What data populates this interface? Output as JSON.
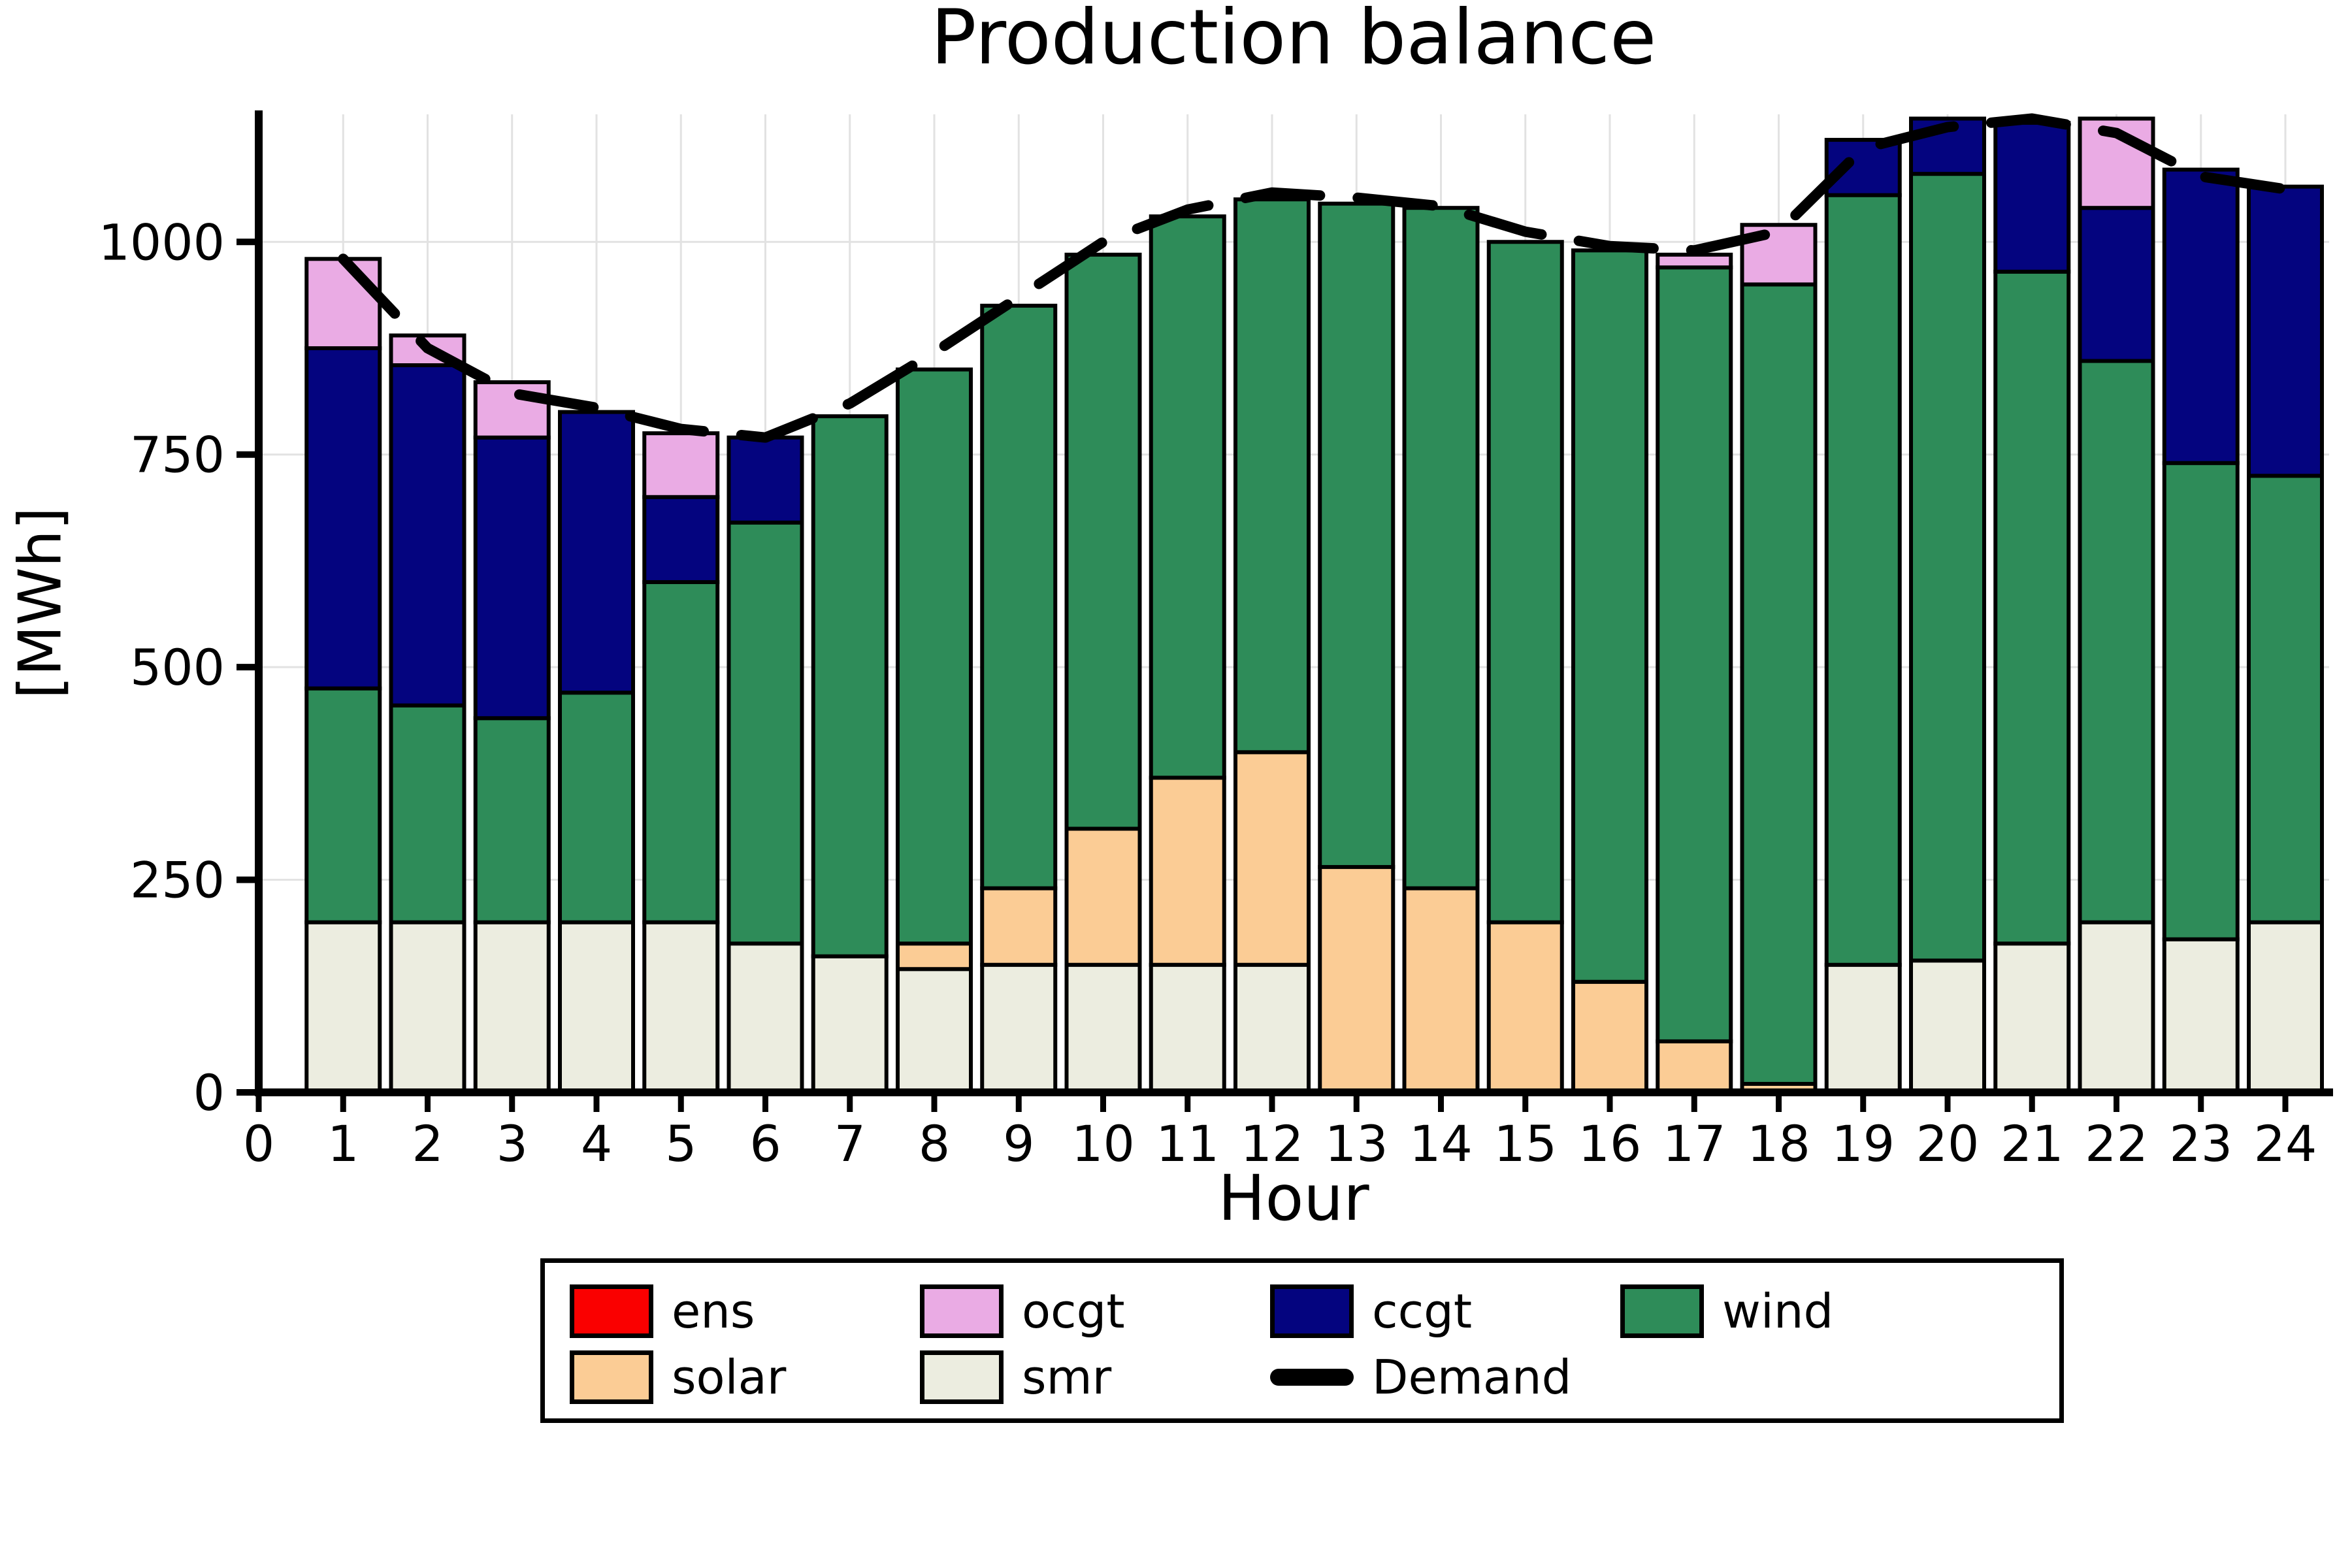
{
  "title": "Production balance",
  "axes": {
    "xlabel": "Hour",
    "ylabel": "[MWh]",
    "yticks": [
      0,
      250,
      500,
      750,
      1000
    ],
    "xticks": [
      0,
      1,
      2,
      3,
      4,
      5,
      6,
      7,
      8,
      9,
      10,
      11,
      12,
      13,
      14,
      15,
      16,
      17,
      18,
      19,
      20,
      21,
      22,
      23,
      24
    ],
    "ylim": [
      0,
      1150
    ],
    "grid": true
  },
  "colors": {
    "ens": "#fa0000",
    "ocgt": "#eaabe4",
    "ccgt": "#04047f",
    "wind": "#2e8c59",
    "solar": "#fbcc95",
    "smr": "#ecede0",
    "demand": "#000000",
    "grid": "#e2e2e2",
    "axis": "#000000",
    "bar_stroke": "#000000"
  },
  "legend": {
    "rows": [
      [
        "ens",
        "ocgt",
        "ccgt",
        "wind"
      ],
      [
        "solar",
        "smr",
        "demand"
      ]
    ],
    "labels": {
      "ens": "ens",
      "ocgt": "ocgt",
      "ccgt": "ccgt",
      "wind": "wind",
      "solar": "solar",
      "smr": "smr",
      "demand": "Demand"
    },
    "position": "bottom-center"
  },
  "chart_data": {
    "type": "bar",
    "stacked": true,
    "title": "Production balance",
    "xlabel": "Hour",
    "ylabel": "[MWh]",
    "ylim": [
      0,
      1150
    ],
    "x": [
      1,
      2,
      3,
      4,
      5,
      6,
      7,
      8,
      9,
      10,
      11,
      12,
      13,
      14,
      15,
      16,
      17,
      18,
      19,
      20,
      21,
      22,
      23,
      24
    ],
    "stack_order": [
      "smr",
      "solar",
      "wind",
      "ccgt",
      "ocgt",
      "ens"
    ],
    "series": [
      {
        "name": "smr",
        "values": [
          200,
          200,
          200,
          200,
          200,
          175,
          160,
          145,
          150,
          150,
          150,
          150,
          0,
          0,
          0,
          0,
          0,
          0,
          150,
          155,
          175,
          200,
          180,
          200
        ]
      },
      {
        "name": "solar",
        "values": [
          0,
          0,
          0,
          0,
          0,
          0,
          0,
          30,
          90,
          160,
          220,
          250,
          265,
          240,
          200,
          130,
          60,
          10,
          0,
          0,
          0,
          0,
          0,
          0
        ]
      },
      {
        "name": "wind",
        "values": [
          275,
          255,
          240,
          270,
          400,
          495,
          635,
          675,
          685,
          675,
          660,
          650,
          780,
          800,
          800,
          860,
          910,
          940,
          905,
          925,
          790,
          660,
          560,
          525
        ]
      },
      {
        "name": "ccgt",
        "values": [
          400,
          400,
          330,
          330,
          100,
          100,
          0,
          0,
          0,
          0,
          0,
          0,
          0,
          0,
          0,
          0,
          0,
          0,
          65,
          65,
          175,
          180,
          345,
          340
        ]
      },
      {
        "name": "ocgt",
        "values": [
          105,
          35,
          65,
          0,
          75,
          0,
          0,
          0,
          0,
          0,
          0,
          0,
          0,
          0,
          0,
          0,
          15,
          70,
          0,
          0,
          0,
          105,
          0,
          0
        ]
      },
      {
        "name": "ens",
        "values": [
          0,
          0,
          0,
          0,
          0,
          0,
          0,
          0,
          0,
          0,
          0,
          0,
          0,
          0,
          0,
          0,
          0,
          0,
          0,
          0,
          0,
          0,
          0,
          0
        ]
      }
    ],
    "line_series": {
      "name": "Demand",
      "values": [
        980,
        875,
        822,
        805,
        780,
        770,
        810,
        870,
        935,
        1000,
        1038,
        1058,
        1052,
        1042,
        1012,
        995,
        990,
        1012,
        1110,
        1135,
        1145,
        1128,
        1077,
        1062
      ]
    },
    "legend_entries": [
      "ens",
      "ocgt",
      "ccgt",
      "wind",
      "solar",
      "smr",
      "Demand"
    ]
  }
}
